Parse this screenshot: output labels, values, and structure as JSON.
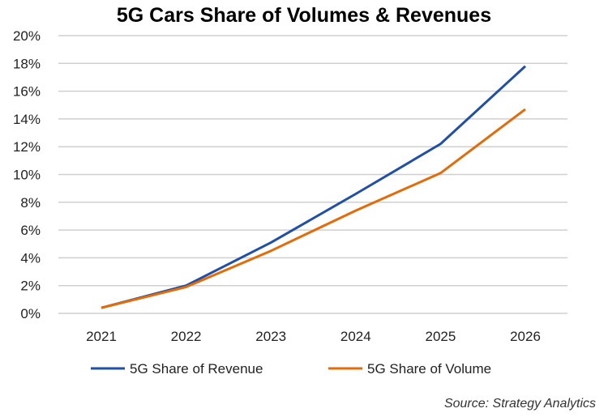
{
  "chart_data": {
    "type": "line",
    "title": "5G Cars Share of Volumes & Revenues",
    "categories": [
      "2021",
      "2022",
      "2023",
      "2024",
      "2025",
      "2026"
    ],
    "series": [
      {
        "name": "5G Share of Revenue",
        "color": "#1f4fa8",
        "values": [
          0.4,
          2.0,
          5.1,
          8.6,
          12.2,
          17.8
        ]
      },
      {
        "name": "5G Share of Volume",
        "color": "#e36c0a",
        "values": [
          0.4,
          1.9,
          4.5,
          7.4,
          10.1,
          14.7
        ]
      }
    ],
    "ylim": [
      0,
      20
    ],
    "yticks": [
      "0%",
      "2%",
      "4%",
      "6%",
      "8%",
      "10%",
      "12%",
      "14%",
      "16%",
      "18%",
      "20%"
    ],
    "grid": true,
    "legend_position": "bottom",
    "source": "Source: Strategy Analytics"
  }
}
